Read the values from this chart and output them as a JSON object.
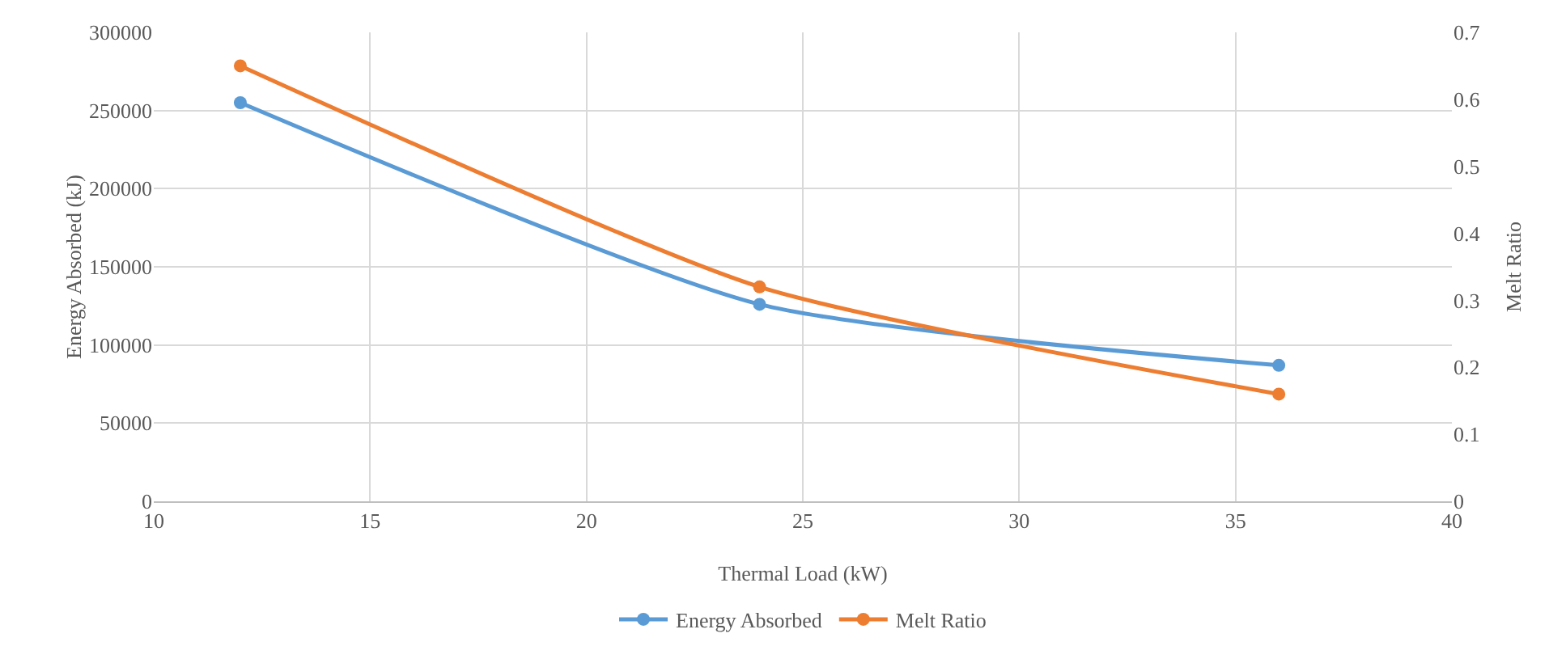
{
  "chart_data": {
    "type": "line",
    "xlabel": "Thermal Load (kW)",
    "ylabel": "Energy Absorbed (kJ)",
    "y2label": "Melt Ratio",
    "x": [
      12,
      24,
      36
    ],
    "series": [
      {
        "name": "Energy Absorbed",
        "color": "#5b9bd5",
        "values": [
          255000,
          126000,
          87000
        ]
      },
      {
        "name": "Melt Ratio",
        "color": "#ed7d31",
        "values": [
          0.65,
          0.32,
          0.16
        ],
        "axis": "y2"
      }
    ],
    "xlim": [
      10,
      40
    ],
    "xticks": [
      10,
      15,
      20,
      25,
      30,
      35,
      40
    ],
    "ylim": [
      0,
      300000
    ],
    "yticks": [
      0,
      50000,
      100000,
      150000,
      200000,
      250000,
      300000
    ],
    "y2lim": [
      0,
      0.7
    ],
    "y2ticks": [
      0,
      0.1,
      0.2,
      0.3,
      0.4,
      0.5,
      0.6,
      0.7
    ],
    "grid": true,
    "legend": "bottom",
    "marker": "circle",
    "line_style": "solid"
  }
}
